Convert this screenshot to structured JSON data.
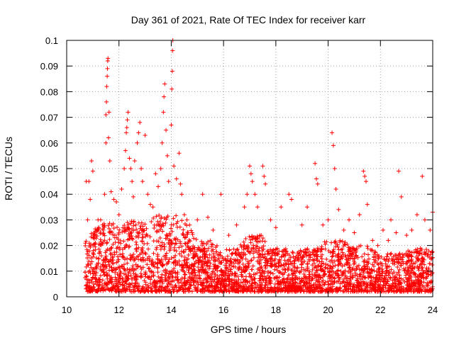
{
  "chart_data": {
    "type": "scatter",
    "title": "Day 361 of 2021, Rate Of TEC Index for receiver karr",
    "xlabel": "GPS time / hours",
    "ylabel": "ROTI / TECUs",
    "xlim": [
      10,
      24
    ],
    "ylim": [
      0,
      0.1
    ],
    "x_ticks": [
      10,
      12,
      14,
      16,
      18,
      20,
      22,
      24
    ],
    "x_tick_labels": [
      "10",
      "12",
      "14",
      "16",
      "18",
      "20",
      "22",
      "24"
    ],
    "y_ticks": [
      0,
      0.01,
      0.02,
      0.03,
      0.04,
      0.05,
      0.06,
      0.07,
      0.08,
      0.09,
      0.1
    ],
    "y_tick_labels": [
      "0",
      "0.01",
      "0.02",
      "0.03",
      "0.04",
      "0.05",
      "0.06",
      "0.07",
      "0.08",
      "0.09",
      "0.1"
    ],
    "grid": true,
    "marker": "+",
    "color": "#ff0000",
    "series": [
      {
        "name": "ROTI",
        "points": [
          [
            10.75,
            0.045
          ],
          [
            10.8,
            0.03
          ],
          [
            10.85,
            0.045
          ],
          [
            10.9,
            0.038
          ],
          [
            10.95,
            0.053
          ],
          [
            11.0,
            0.049
          ],
          [
            11.05,
            0.025
          ],
          [
            11.1,
            0.021
          ],
          [
            11.2,
            0.03
          ],
          [
            11.3,
            0.03
          ],
          [
            11.4,
            0.026
          ],
          [
            11.45,
            0.04
          ],
          [
            11.5,
            0.06
          ],
          [
            11.5,
            0.071
          ],
          [
            11.52,
            0.076
          ],
          [
            11.53,
            0.082
          ],
          [
            11.55,
            0.086
          ],
          [
            11.56,
            0.089
          ],
          [
            11.57,
            0.092
          ],
          [
            11.58,
            0.093
          ],
          [
            11.6,
            0.062
          ],
          [
            11.62,
            0.072
          ],
          [
            11.65,
            0.053
          ],
          [
            11.7,
            0.041
          ],
          [
            11.8,
            0.038
          ],
          [
            11.9,
            0.037
          ],
          [
            12.0,
            0.032
          ],
          [
            12.1,
            0.042
          ],
          [
            12.2,
            0.05
          ],
          [
            12.25,
            0.057
          ],
          [
            12.28,
            0.064
          ],
          [
            12.3,
            0.066
          ],
          [
            12.32,
            0.069
          ],
          [
            12.35,
            0.072
          ],
          [
            12.4,
            0.054
          ],
          [
            12.45,
            0.05
          ],
          [
            12.5,
            0.045
          ],
          [
            12.55,
            0.039
          ],
          [
            12.6,
            0.053
          ],
          [
            12.7,
            0.06
          ],
          [
            12.75,
            0.064
          ],
          [
            12.8,
            0.068
          ],
          [
            12.85,
            0.05
          ],
          [
            12.9,
            0.045
          ],
          [
            13.0,
            0.063
          ],
          [
            13.1,
            0.04
          ],
          [
            13.2,
            0.036
          ],
          [
            13.3,
            0.035
          ],
          [
            13.4,
            0.048
          ],
          [
            13.5,
            0.043
          ],
          [
            13.6,
            0.05
          ],
          [
            13.65,
            0.06
          ],
          [
            13.7,
            0.072
          ],
          [
            13.72,
            0.078
          ],
          [
            13.75,
            0.083
          ],
          [
            13.8,
            0.065
          ],
          [
            13.85,
            0.055
          ],
          [
            13.9,
            0.045
          ],
          [
            14.0,
            0.067
          ],
          [
            14.02,
            0.081
          ],
          [
            14.04,
            0.088
          ],
          [
            14.05,
            0.096
          ],
          [
            14.06,
            0.1
          ],
          [
            14.1,
            0.051
          ],
          [
            14.2,
            0.046
          ],
          [
            14.3,
            0.056
          ],
          [
            14.35,
            0.044
          ],
          [
            14.4,
            0.04
          ],
          [
            14.5,
            0.032
          ],
          [
            14.6,
            0.03
          ],
          [
            14.7,
            0.028
          ],
          [
            14.8,
            0.025
          ],
          [
            15.0,
            0.03
          ],
          [
            15.2,
            0.04
          ],
          [
            15.4,
            0.031
          ],
          [
            15.6,
            0.026
          ],
          [
            15.9,
            0.04
          ],
          [
            16.2,
            0.024
          ],
          [
            16.5,
            0.028
          ],
          [
            16.8,
            0.035
          ],
          [
            16.9,
            0.04
          ],
          [
            17.0,
            0.051
          ],
          [
            17.05,
            0.048
          ],
          [
            17.1,
            0.045
          ],
          [
            17.2,
            0.04
          ],
          [
            17.3,
            0.035
          ],
          [
            17.5,
            0.051
          ],
          [
            17.55,
            0.047
          ],
          [
            17.6,
            0.044
          ],
          [
            17.8,
            0.03
          ],
          [
            18.0,
            0.027
          ],
          [
            18.2,
            0.035
          ],
          [
            18.5,
            0.04
          ],
          [
            18.6,
            0.038
          ],
          [
            19.0,
            0.028
          ],
          [
            19.2,
            0.035
          ],
          [
            19.5,
            0.052
          ],
          [
            19.55,
            0.046
          ],
          [
            19.6,
            0.044
          ],
          [
            19.8,
            0.028
          ],
          [
            20.0,
            0.03
          ],
          [
            20.15,
            0.064
          ],
          [
            20.2,
            0.059
          ],
          [
            20.25,
            0.05
          ],
          [
            20.3,
            0.042
          ],
          [
            20.4,
            0.034
          ],
          [
            20.6,
            0.026
          ],
          [
            20.8,
            0.03
          ],
          [
            21.0,
            0.025
          ],
          [
            21.2,
            0.032
          ],
          [
            21.35,
            0.049
          ],
          [
            21.4,
            0.047
          ],
          [
            21.45,
            0.045
          ],
          [
            21.5,
            0.036
          ],
          [
            21.7,
            0.022
          ],
          [
            21.9,
            0.02
          ],
          [
            22.1,
            0.026
          ],
          [
            22.3,
            0.022
          ],
          [
            22.4,
            0.03
          ],
          [
            22.6,
            0.025
          ],
          [
            22.7,
            0.049
          ],
          [
            22.8,
            0.039
          ],
          [
            23.0,
            0.024
          ],
          [
            23.2,
            0.026
          ],
          [
            23.4,
            0.032
          ],
          [
            23.6,
            0.047
          ],
          [
            23.7,
            0.03
          ],
          [
            23.9,
            0.026
          ],
          [
            24.0,
            0.033
          ]
        ],
        "noise_band": [
          [
            10.7,
            0.02
          ],
          [
            11.0,
            0.024
          ],
          [
            11.5,
            0.028
          ],
          [
            12.0,
            0.026
          ],
          [
            12.5,
            0.028
          ],
          [
            13.0,
            0.027
          ],
          [
            13.5,
            0.03
          ],
          [
            14.0,
            0.032
          ],
          [
            14.5,
            0.028
          ],
          [
            15.0,
            0.02
          ],
          [
            15.5,
            0.02
          ],
          [
            16.0,
            0.016
          ],
          [
            16.5,
            0.018
          ],
          [
            17.0,
            0.022
          ],
          [
            17.5,
            0.022
          ],
          [
            18.0,
            0.017
          ],
          [
            18.5,
            0.017
          ],
          [
            19.0,
            0.016
          ],
          [
            19.5,
            0.018
          ],
          [
            20.0,
            0.02
          ],
          [
            20.5,
            0.02
          ],
          [
            21.0,
            0.018
          ],
          [
            21.5,
            0.018
          ],
          [
            22.0,
            0.014
          ],
          [
            22.5,
            0.016
          ],
          [
            23.0,
            0.016
          ],
          [
            23.5,
            0.017
          ],
          [
            24.0,
            0.016
          ]
        ]
      }
    ]
  }
}
